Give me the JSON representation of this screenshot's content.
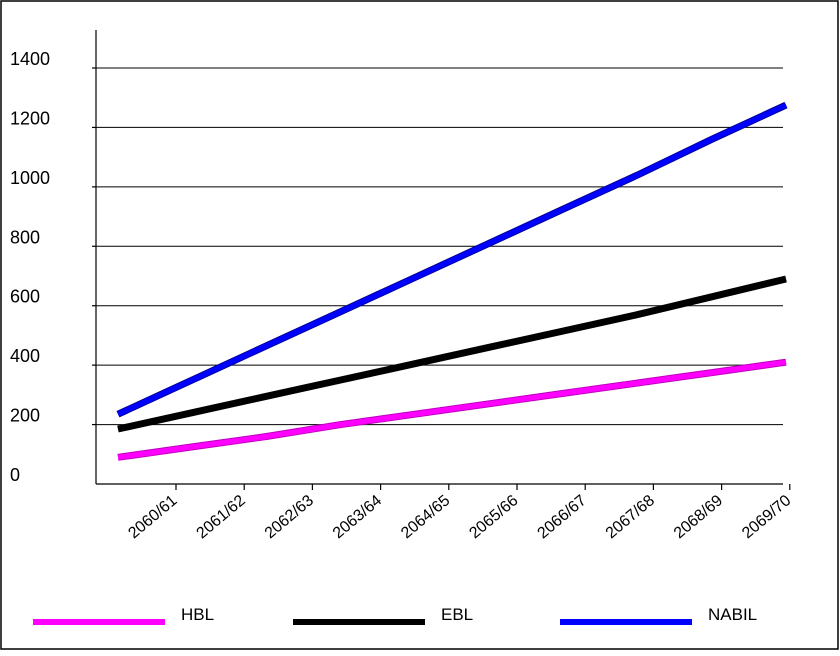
{
  "chart_data": {
    "type": "line",
    "title": "",
    "xlabel": "",
    "ylabel": "",
    "categories": [
      "2060/61",
      "2061/62",
      "2062/63",
      "2063/64",
      "2064/65",
      "2065/66",
      "2066/67",
      "2067/68",
      "2068/69",
      "2069/70"
    ],
    "ylim": [
      0,
      1400
    ],
    "yticks": [
      0,
      200,
      400,
      600,
      800,
      1000,
      1200,
      1400
    ],
    "grid": true,
    "legend_position": "bottom",
    "series": [
      {
        "name": "HBL",
        "color": "#ff00ff",
        "values": [
          90,
          125,
          160,
          200,
          235,
          270,
          305,
          340,
          375,
          410
        ]
      },
      {
        "name": "EBL",
        "color": "#000000",
        "values": [
          185,
          240,
          295,
          350,
          405,
          460,
          515,
          570,
          630,
          690
        ]
      },
      {
        "name": "NABIL",
        "color": "#0000ff",
        "values": [
          235,
          350,
          465,
          580,
          695,
          810,
          925,
          1040,
          1160,
          1275
        ]
      }
    ]
  }
}
